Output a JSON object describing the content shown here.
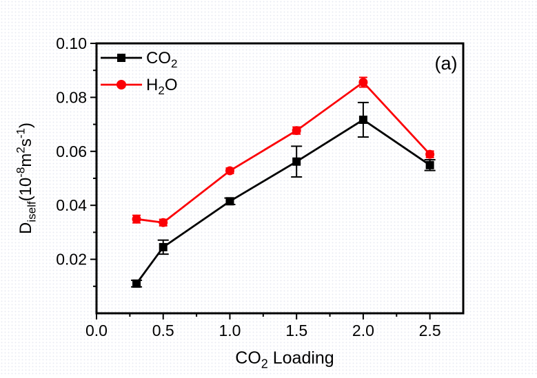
{
  "figure": {
    "annotation": "(a)"
  },
  "chart_data": {
    "type": "line",
    "title": "",
    "annotation": "(a)",
    "xlabel_text": "CO2 Loading",
    "xlabel_parts": [
      {
        "t": "CO"
      },
      {
        "t": "2",
        "sub": true
      },
      {
        "t": " Loading"
      }
    ],
    "ylabel_text": "Diself(10-8m2s-1)",
    "ylabel_parts": [
      {
        "t": "D"
      },
      {
        "t": "iself",
        "sub": true
      },
      {
        "t": "(10"
      },
      {
        "t": "-8",
        "sup": true
      },
      {
        "t": "m"
      },
      {
        "t": "2",
        "sup": true
      },
      {
        "t": "s"
      },
      {
        "t": "-1",
        "sup": true
      },
      {
        "t": ")"
      }
    ],
    "xlim": [
      0,
      2.75
    ],
    "ylim": [
      0,
      0.1
    ],
    "grid": false,
    "legend_position": "top-left",
    "x_major_ticks": [
      0,
      0.5,
      1.0,
      1.5,
      2.0,
      2.5
    ],
    "x_tick_labels": [
      "0.0",
      "0.5",
      "1.0",
      "1.5",
      "2.0",
      "2.5"
    ],
    "x_minor_ticks": [
      0.25,
      0.75,
      1.25,
      1.75,
      2.25
    ],
    "y_major_ticks": [
      0.02,
      0.04,
      0.06,
      0.08,
      0.1
    ],
    "y_tick_labels": [
      "0.02",
      "0.04",
      "0.06",
      "0.08",
      "0.10"
    ],
    "y_minor_ticks": [
      0.01,
      0.03,
      0.05,
      0.07,
      0.09
    ],
    "x_shared": [
      0.3,
      0.5,
      1.0,
      1.5,
      2.0,
      2.5
    ],
    "series": [
      {
        "name": "CO2",
        "label_parts": [
          {
            "t": "CO"
          },
          {
            "t": "2",
            "sub": true
          }
        ],
        "color": "#000000",
        "marker": "square",
        "x": [
          0.3,
          0.5,
          1.0,
          1.5,
          2.0,
          2.5
        ],
        "y": [
          0.011,
          0.0245,
          0.0415,
          0.0562,
          0.0717,
          0.0549
        ],
        "yerr": [
          0.0012,
          0.0026,
          0.0012,
          0.0057,
          0.0064,
          0.002
        ]
      },
      {
        "name": "H2O",
        "label_parts": [
          {
            "t": "H"
          },
          {
            "t": "2",
            "sub": true
          },
          {
            "t": "O"
          }
        ],
        "color": "#fb0006",
        "marker": "circle",
        "x": [
          0.3,
          0.5,
          1.0,
          1.5,
          2.0,
          2.5
        ],
        "y": [
          0.0349,
          0.0336,
          0.0528,
          0.0677,
          0.0856,
          0.0589
        ],
        "yerr": [
          0.0014,
          0.0012,
          0.001,
          0.0013,
          0.0018,
          0.0012
        ]
      }
    ]
  }
}
